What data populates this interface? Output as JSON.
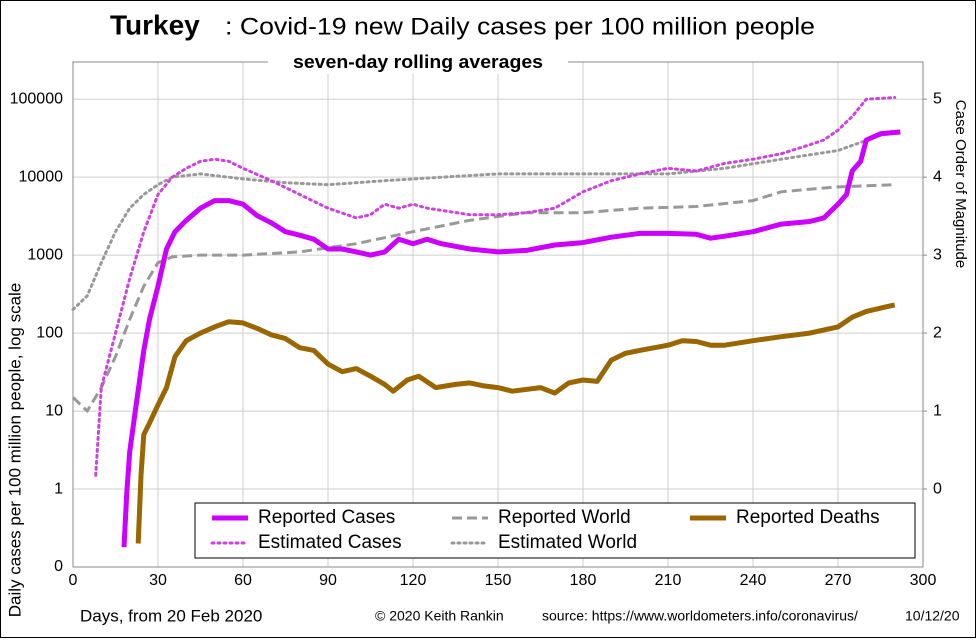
{
  "chart_data": {
    "type": "line",
    "title_bold": "Turkey",
    "title": ": Covid-19 new Daily cases per 100 million people",
    "subtitle": "seven-day rolling averages",
    "ylabel": "Daily cases per 100 million people, log scale",
    "y2label": "Case Order of Magnitude",
    "xlabel": "Days, from 20 Feb 2020",
    "credit": "© 2020  Keith Rankin",
    "source": "source:  https://www.worldometers.info/coronavirus/",
    "date": "10/12/20",
    "log_scale": true,
    "grid": true,
    "xlim": [
      0,
      300
    ],
    "xticks": [
      0,
      30,
      60,
      90,
      120,
      150,
      180,
      210,
      240,
      270,
      300
    ],
    "ylim": [
      0.1,
      300000
    ],
    "yticks": [
      {
        "value": 0.1,
        "label": "0"
      },
      1,
      10,
      100,
      1000,
      10000,
      100000
    ],
    "y2lim": [
      -1,
      5.477
    ],
    "y2ticks": [
      0,
      1,
      2,
      3,
      4,
      5
    ],
    "legend": "bottom",
    "series": [
      {
        "name": "Reported Cases",
        "color": "#cc00ff",
        "style": "solid",
        "x": [
          18,
          19,
          20,
          22,
          25,
          27,
          30,
          33,
          36,
          40,
          45,
          50,
          55,
          60,
          65,
          70,
          75,
          80,
          85,
          90,
          95,
          100,
          105,
          110,
          115,
          120,
          125,
          130,
          140,
          150,
          160,
          170,
          180,
          190,
          200,
          210,
          220,
          225,
          230,
          240,
          250,
          260,
          265,
          270,
          273,
          275,
          278,
          280,
          285,
          292
        ],
        "values": [
          0.18,
          0.9,
          3,
          10,
          60,
          150,
          400,
          1200,
          2000,
          2800,
          4000,
          5000,
          5000,
          4500,
          3200,
          2600,
          2000,
          1800,
          1600,
          1200,
          1200,
          1100,
          1000,
          1100,
          1600,
          1400,
          1600,
          1400,
          1200,
          1100,
          1150,
          1350,
          1450,
          1700,
          1900,
          1900,
          1850,
          1650,
          1750,
          2000,
          2500,
          2700,
          3000,
          4500,
          6000,
          12000,
          16000,
          30000,
          36000,
          38000
        ]
      },
      {
        "name": "Estimated Cases",
        "color": "#cc44dd",
        "style": "dotted",
        "x": [
          8,
          10,
          15,
          20,
          25,
          30,
          35,
          40,
          45,
          50,
          55,
          60,
          70,
          80,
          90,
          100,
          105,
          110,
          115,
          120,
          125,
          140,
          150,
          160,
          170,
          180,
          190,
          200,
          210,
          220,
          230,
          240,
          250,
          260,
          265,
          270,
          275,
          280,
          290
        ],
        "values": [
          1.5,
          20,
          100,
          500,
          2000,
          6000,
          10000,
          13000,
          16000,
          17000,
          16000,
          13000,
          9000,
          6000,
          4000,
          3000,
          3300,
          4500,
          4000,
          4500,
          4000,
          3300,
          3300,
          3500,
          4000,
          6500,
          9000,
          11000,
          13000,
          12000,
          15000,
          17000,
          20000,
          26000,
          30000,
          40000,
          60000,
          100000,
          105000
        ]
      },
      {
        "name": "Reported World",
        "color": "#999999",
        "style": "dashed",
        "x": [
          0,
          5,
          10,
          15,
          20,
          25,
          30,
          35,
          45,
          60,
          80,
          100,
          120,
          140,
          160,
          180,
          200,
          220,
          240,
          250,
          260,
          270,
          290
        ],
        "values": [
          15,
          10,
          20,
          50,
          150,
          400,
          800,
          950,
          1000,
          1000,
          1100,
          1400,
          2000,
          2800,
          3500,
          3500,
          4000,
          4200,
          5000,
          6500,
          7000,
          7500,
          8000
        ]
      },
      {
        "name": "Estimated World",
        "color": "#999999",
        "style": "dotted",
        "x": [
          0,
          5,
          10,
          15,
          20,
          25,
          30,
          35,
          45,
          60,
          75,
          90,
          110,
          130,
          150,
          180,
          210,
          230,
          250,
          270,
          290
        ],
        "values": [
          200,
          300,
          800,
          2000,
          4000,
          6000,
          8000,
          10000,
          11000,
          9500,
          8500,
          8000,
          9000,
          10000,
          11000,
          11000,
          11000,
          13000,
          17000,
          22000,
          40000
        ]
      },
      {
        "name": "Reported Deaths",
        "color": "#996600",
        "style": "solid",
        "x": [
          23,
          24,
          25,
          27,
          30,
          33,
          36,
          40,
          45,
          50,
          55,
          60,
          65,
          70,
          75,
          80,
          85,
          90,
          95,
          100,
          105,
          110,
          113,
          118,
          122,
          128,
          135,
          140,
          145,
          150,
          155,
          165,
          170,
          175,
          180,
          185,
          190,
          195,
          200,
          210,
          215,
          220,
          225,
          230,
          240,
          250,
          260,
          270,
          275,
          280,
          290
        ],
        "values": [
          0.2,
          1.5,
          5,
          7,
          12,
          20,
          50,
          80,
          100,
          120,
          140,
          135,
          115,
          95,
          85,
          65,
          60,
          40,
          32,
          35,
          28,
          22,
          18,
          25,
          28,
          20,
          22,
          23,
          21,
          20,
          18,
          20,
          17,
          23,
          25,
          24,
          45,
          55,
          60,
          70,
          80,
          78,
          70,
          70,
          80,
          90,
          100,
          120,
          160,
          190,
          230
        ]
      }
    ]
  }
}
